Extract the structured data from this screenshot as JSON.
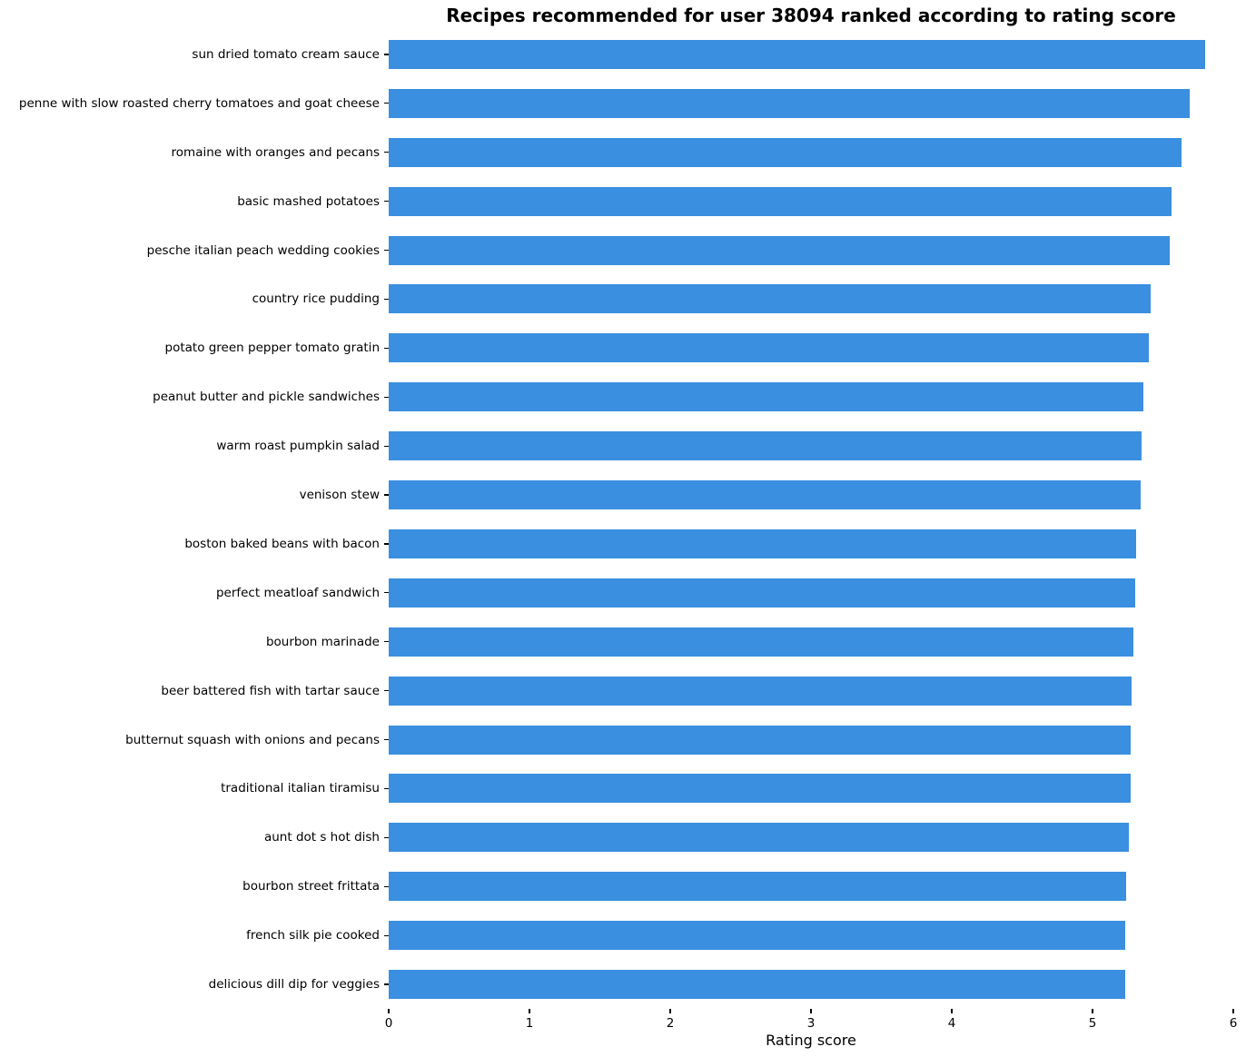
{
  "chart_data": {
    "type": "bar",
    "orientation": "horizontal",
    "title": "Recipes recommended for user 38094 ranked according to rating score",
    "xlabel": "Rating score",
    "ylabel": "",
    "xlim": [
      0,
      6
    ],
    "xticks": [
      0,
      1,
      2,
      3,
      4,
      5,
      6
    ],
    "grid": false,
    "legend": null,
    "bar_color": "#3a8fe0",
    "categories": [
      "sun dried tomato cream sauce",
      "penne with slow roasted cherry tomatoes and goat cheese",
      "romaine with oranges and pecans",
      "basic mashed potatoes",
      "pesche italian peach wedding cookies",
      "country rice pudding",
      "potato green pepper tomato gratin",
      "peanut butter and pickle sandwiches",
      "warm roast pumpkin salad",
      "venison stew",
      "boston baked beans with bacon",
      "perfect meatloaf sandwich",
      "bourbon marinade",
      "beer battered fish with tartar sauce",
      "butternut squash with onions and pecans",
      "traditional italian tiramisu",
      "aunt dot s hot dish",
      "bourbon street frittata",
      "french silk pie cooked",
      "delicious dill dip for veggies"
    ],
    "values": [
      5.8,
      5.69,
      5.63,
      5.56,
      5.55,
      5.41,
      5.4,
      5.36,
      5.35,
      5.34,
      5.31,
      5.3,
      5.29,
      5.28,
      5.27,
      5.27,
      5.26,
      5.24,
      5.23,
      5.23
    ]
  }
}
